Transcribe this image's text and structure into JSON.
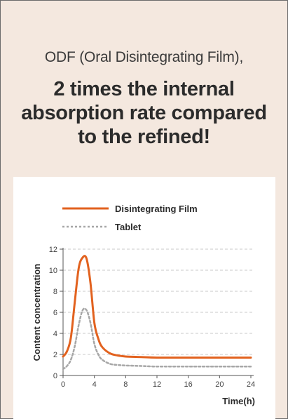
{
  "header": {
    "subtitle": "ODF (Oral Disintegrating Film),",
    "headline_lines": [
      "2 times the internal",
      "absorption rate compared",
      "to the refined!"
    ]
  },
  "colors": {
    "background": "#f4e8df",
    "film": "#e2621f",
    "tablet": "#a7a7a7",
    "grid": "#c9c9c9"
  },
  "chart_data": {
    "type": "line",
    "xlabel": "Time(h)",
    "ylabel": "Content concentration",
    "xlim": [
      0,
      24
    ],
    "ylim": [
      0,
      12
    ],
    "xticks": [
      0,
      4,
      8,
      12,
      16,
      20,
      24
    ],
    "yticks": [
      0,
      2,
      4,
      6,
      8,
      10,
      12
    ],
    "grid": "horizontal dashed",
    "legend_position": "top",
    "series": [
      {
        "name": "Disintegrating Film",
        "style": "solid",
        "x": [
          0,
          0.5,
          1,
          1.5,
          2,
          2.5,
          3,
          3.5,
          4,
          4.5,
          5,
          6,
          7,
          8,
          10,
          12,
          16,
          20,
          24
        ],
        "y": [
          1.8,
          2.3,
          3.6,
          7.0,
          10.2,
          11.2,
          11.1,
          8.8,
          5.0,
          3.5,
          2.7,
          2.1,
          1.9,
          1.8,
          1.75,
          1.7,
          1.7,
          1.7,
          1.7
        ]
      },
      {
        "name": "Tablet",
        "style": "dotted",
        "x": [
          0,
          0.5,
          1,
          1.5,
          2,
          2.5,
          3,
          3.5,
          4,
          4.5,
          5,
          6,
          7,
          8,
          10,
          12,
          16,
          20,
          24
        ],
        "y": [
          0.6,
          0.9,
          1.5,
          2.8,
          4.8,
          6.2,
          6.2,
          5.0,
          3.0,
          2.0,
          1.5,
          1.1,
          1.0,
          0.95,
          0.9,
          0.85,
          0.85,
          0.85,
          0.85
        ]
      }
    ]
  }
}
